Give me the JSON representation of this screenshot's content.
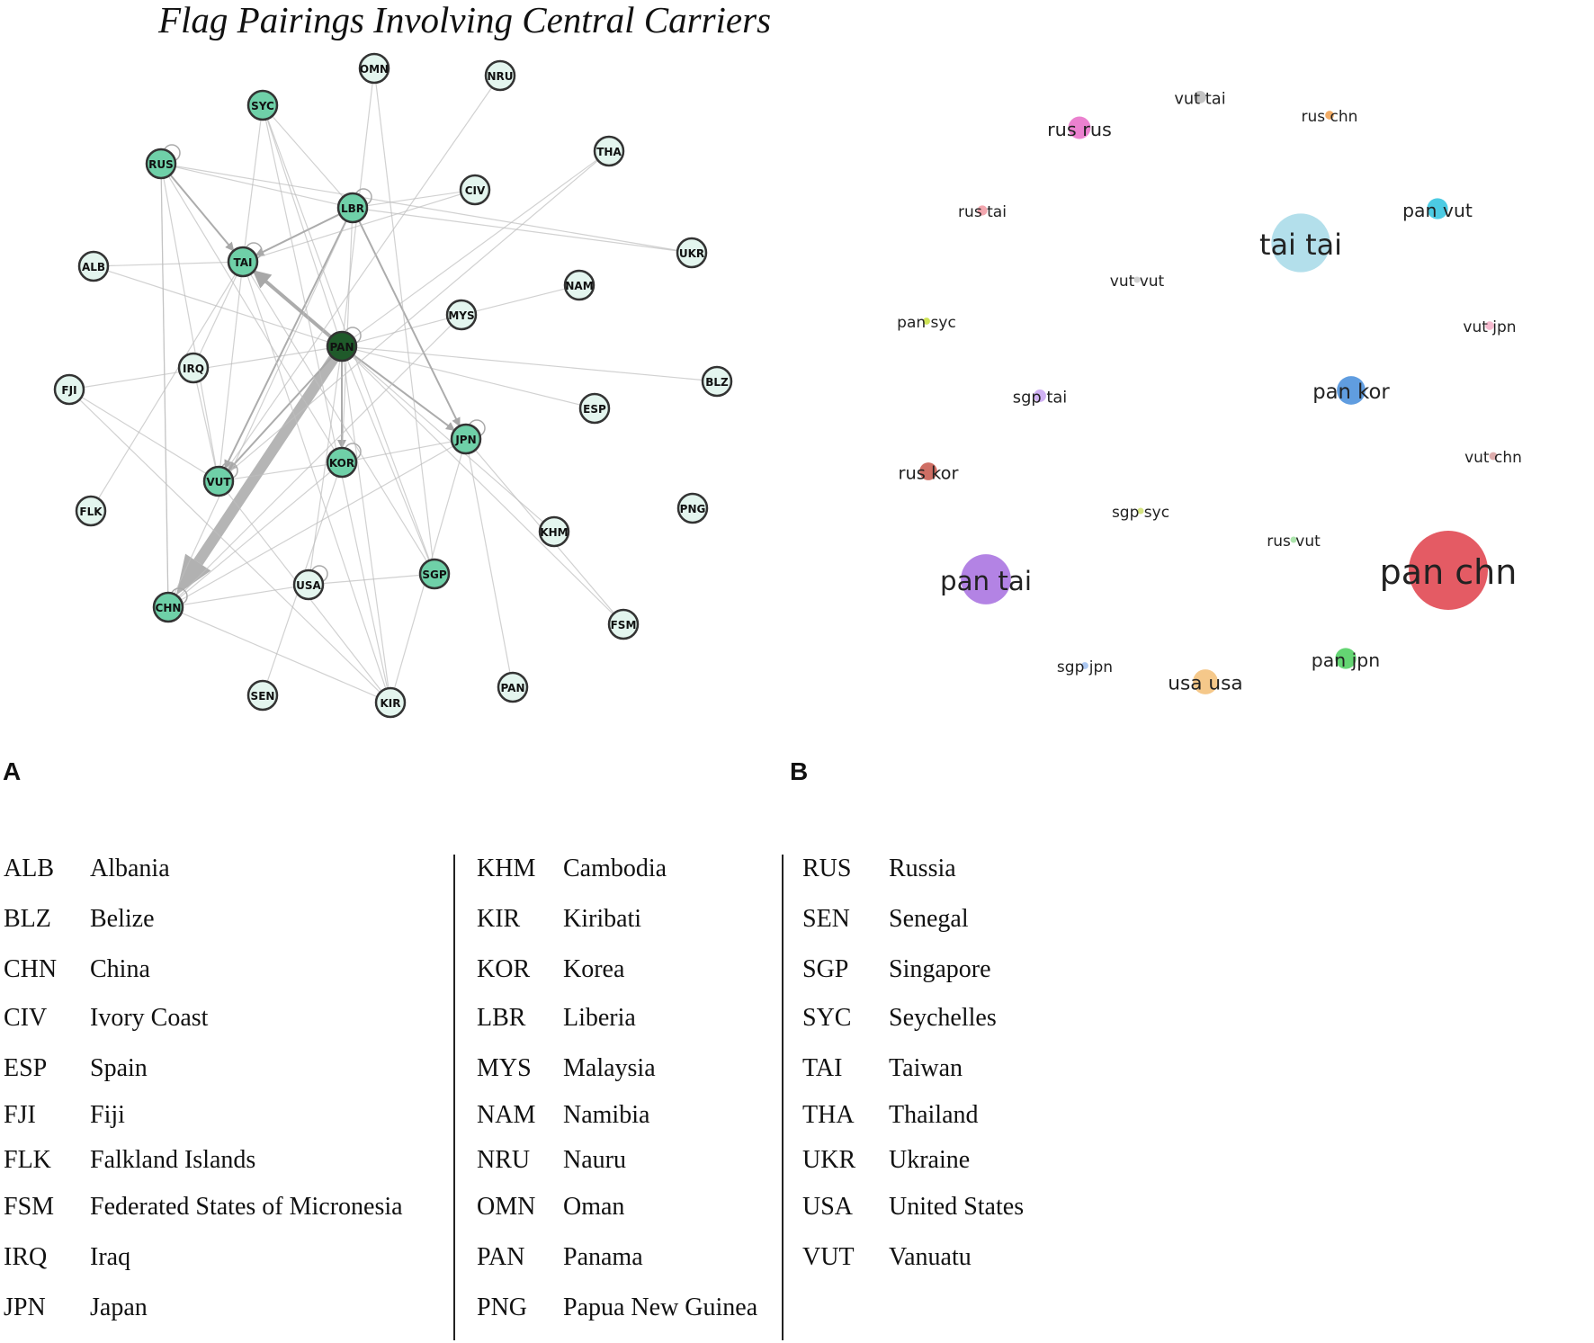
{
  "figure": {
    "title": "Flag Pairings Involving Central Carriers",
    "panel_a_label": "A",
    "panel_b_label": "B"
  },
  "network": {
    "nodes": [
      {
        "id": "OMN",
        "label": "OMN",
        "style": "light"
      },
      {
        "id": "NRU",
        "label": "NRU",
        "style": "light"
      },
      {
        "id": "SYC",
        "label": "SYC",
        "style": "medium"
      },
      {
        "id": "RUS",
        "label": "RUS",
        "style": "medium"
      },
      {
        "id": "THA",
        "label": "THA",
        "style": "light"
      },
      {
        "id": "CIV",
        "label": "CIV",
        "style": "light"
      },
      {
        "id": "LBR",
        "label": "LBR",
        "style": "medium"
      },
      {
        "id": "ALB",
        "label": "ALB",
        "style": "light"
      },
      {
        "id": "TAI",
        "label": "TAI",
        "style": "medium"
      },
      {
        "id": "UKR",
        "label": "UKR",
        "style": "light"
      },
      {
        "id": "NAM",
        "label": "NAM",
        "style": "light"
      },
      {
        "id": "MYS",
        "label": "MYS",
        "style": "light"
      },
      {
        "id": "PAN",
        "label": "PAN",
        "style": "dark"
      },
      {
        "id": "IRQ",
        "label": "IRQ",
        "style": "light"
      },
      {
        "id": "FJI",
        "label": "FJI",
        "style": "light"
      },
      {
        "id": "BLZ",
        "label": "BLZ",
        "style": "light"
      },
      {
        "id": "ESP",
        "label": "ESP",
        "style": "light"
      },
      {
        "id": "JPN",
        "label": "JPN",
        "style": "medium"
      },
      {
        "id": "KOR",
        "label": "KOR",
        "style": "medium"
      },
      {
        "id": "VUT",
        "label": "VUT",
        "style": "medium"
      },
      {
        "id": "FLK",
        "label": "FLK",
        "style": "light"
      },
      {
        "id": "PNG",
        "label": "PNG",
        "style": "light"
      },
      {
        "id": "KHM",
        "label": "KHM",
        "style": "light"
      },
      {
        "id": "SGP",
        "label": "SGP",
        "style": "medium"
      },
      {
        "id": "USA",
        "label": "USA",
        "style": "light"
      },
      {
        "id": "CHN",
        "label": "CHN",
        "style": "medium"
      },
      {
        "id": "FSM",
        "label": "FSM",
        "style": "light"
      },
      {
        "id": "SEN",
        "label": "SEN",
        "style": "light"
      },
      {
        "id": "KIR",
        "label": "KIR",
        "style": "light"
      },
      {
        "id": "PAN2",
        "label": "PAN",
        "style": "light"
      }
    ],
    "edges": [
      {
        "from": "PAN",
        "to": "CHN",
        "weight": 10
      },
      {
        "from": "PAN",
        "to": "TAI",
        "weight": 4
      },
      {
        "from": "PAN",
        "to": "KOR",
        "weight": 2
      },
      {
        "from": "PAN",
        "to": "JPN",
        "weight": 2
      },
      {
        "from": "PAN",
        "to": "VUT",
        "weight": 2
      },
      {
        "from": "PAN",
        "to": "SYC",
        "weight": 1
      },
      {
        "from": "PAN",
        "to": "MYS",
        "weight": 1
      },
      {
        "from": "PAN",
        "to": "ESP",
        "weight": 1
      },
      {
        "from": "PAN",
        "to": "BLZ",
        "weight": 1
      },
      {
        "from": "PAN",
        "to": "SGP",
        "weight": 1
      },
      {
        "from": "PAN",
        "to": "KHM",
        "weight": 1
      },
      {
        "from": "PAN",
        "to": "FSM",
        "weight": 1
      },
      {
        "from": "PAN",
        "to": "FJI",
        "weight": 1
      },
      {
        "from": "PAN",
        "to": "KIR",
        "weight": 1
      },
      {
        "from": "PAN",
        "to": "USA",
        "weight": 1
      },
      {
        "from": "PAN",
        "to": "THA",
        "weight": 1
      },
      {
        "from": "PAN",
        "to": "ALB",
        "weight": 1
      },
      {
        "from": "PAN",
        "to": "OMN",
        "weight": 1
      },
      {
        "from": "LBR",
        "to": "JPN",
        "weight": 2
      },
      {
        "from": "LBR",
        "to": "VUT",
        "weight": 2
      },
      {
        "from": "LBR",
        "to": "TAI",
        "weight": 2
      },
      {
        "from": "LBR",
        "to": "KOR",
        "weight": 1
      },
      {
        "from": "LBR",
        "to": "RUS",
        "weight": 1
      },
      {
        "from": "LBR",
        "to": "UKR",
        "weight": 1
      },
      {
        "from": "LBR",
        "to": "CIV",
        "weight": 1
      },
      {
        "from": "LBR",
        "to": "CHN",
        "weight": 1
      },
      {
        "from": "RUS",
        "to": "TAI",
        "weight": 2
      },
      {
        "from": "RUS",
        "to": "KOR",
        "weight": 1
      },
      {
        "from": "RUS",
        "to": "VUT",
        "weight": 1
      },
      {
        "from": "RUS",
        "to": "CHN",
        "weight": 1
      },
      {
        "from": "RUS",
        "to": "UKR",
        "weight": 1
      },
      {
        "from": "TAI",
        "to": "VUT",
        "weight": 1
      },
      {
        "from": "TAI",
        "to": "SGP",
        "weight": 1
      },
      {
        "from": "TAI",
        "to": "IRQ",
        "weight": 1
      },
      {
        "from": "TAI",
        "to": "FLK",
        "weight": 1
      },
      {
        "from": "TAI",
        "to": "KIR",
        "weight": 1
      },
      {
        "from": "SYC",
        "to": "LBR",
        "weight": 1
      },
      {
        "from": "SYC",
        "to": "TAI",
        "weight": 1
      },
      {
        "from": "SYC",
        "to": "SGP",
        "weight": 1
      },
      {
        "from": "SYC",
        "to": "KIR",
        "weight": 1
      },
      {
        "from": "VUT",
        "to": "KOR",
        "weight": 1
      },
      {
        "from": "VUT",
        "to": "THA",
        "weight": 1
      },
      {
        "from": "VUT",
        "to": "FJI",
        "weight": 1
      },
      {
        "from": "VUT",
        "to": "KIR",
        "weight": 1
      },
      {
        "from": "KOR",
        "to": "JPN",
        "weight": 1
      },
      {
        "from": "KOR",
        "to": "CHN",
        "weight": 1
      },
      {
        "from": "KOR",
        "to": "SEN",
        "weight": 1
      },
      {
        "from": "JPN",
        "to": "CHN",
        "weight": 1
      },
      {
        "from": "JPN",
        "to": "PAN2",
        "weight": 1
      },
      {
        "from": "JPN",
        "to": "KIR",
        "weight": 1
      },
      {
        "from": "JPN",
        "to": "FSM",
        "weight": 1
      },
      {
        "from": "USA",
        "to": "SGP",
        "weight": 1
      },
      {
        "from": "USA",
        "to": "CHN",
        "weight": 1
      },
      {
        "from": "CHN",
        "to": "KIR",
        "weight": 1
      },
      {
        "from": "CHN",
        "to": "RUS",
        "weight": 1
      },
      {
        "from": "CHN",
        "to": "MYS",
        "weight": 1
      },
      {
        "from": "CIV",
        "to": "TAI",
        "weight": 1
      },
      {
        "from": "NRU",
        "to": "VUT",
        "weight": 1
      },
      {
        "from": "OMN",
        "to": "SGP",
        "weight": 1
      },
      {
        "from": "MYS",
        "to": "NAM",
        "weight": 1
      },
      {
        "from": "FJI",
        "to": "KIR",
        "weight": 1
      },
      {
        "from": "IRQ",
        "to": "VUT",
        "weight": 1
      },
      {
        "from": "ALB",
        "to": "TAI",
        "weight": 1
      }
    ]
  },
  "bubbles": [
    {
      "label": "pan chn",
      "value": 100,
      "color": "#e0444f"
    },
    {
      "label": "tai tai",
      "value": 55,
      "color": "#a9dbe8"
    },
    {
      "label": "pan tai",
      "value": 40,
      "color": "#a872e0"
    },
    {
      "label": "pan kor",
      "value": 13,
      "color": "#4a8fdc"
    },
    {
      "label": "usa usa",
      "value": 10,
      "color": "#f4c07a"
    },
    {
      "label": "rus rus",
      "value": 8,
      "color": "#e870c8"
    },
    {
      "label": "pan vut",
      "value": 7,
      "color": "#33c4df"
    },
    {
      "label": "pan jpn",
      "value": 7,
      "color": "#4fcf60"
    },
    {
      "label": "rus kor",
      "value": 5,
      "color": "#c85a4e"
    },
    {
      "label": "vut tai",
      "value": 2.5,
      "color": "#bbbbbb"
    },
    {
      "label": "sgp tai",
      "value": 2.5,
      "color": "#c9a6f2"
    },
    {
      "label": "rus tai",
      "value": 1.6,
      "color": "#f09aa3"
    },
    {
      "label": "rus chn",
      "value": 1.2,
      "color": "#f0a050"
    },
    {
      "label": "vut jpn",
      "value": 1.2,
      "color": "#f5b0c8"
    },
    {
      "label": "vut chn",
      "value": 1.0,
      "color": "#d8a0a0"
    },
    {
      "label": "pan syc",
      "value": 0.8,
      "color": "#c8e040"
    },
    {
      "label": "sgp jpn",
      "value": 0.8,
      "color": "#a0c0f0"
    },
    {
      "label": "sgp syc",
      "value": 0.5,
      "color": "#d0e070"
    },
    {
      "label": "rus vut",
      "value": 0.5,
      "color": "#a0e0a0"
    },
    {
      "label": "vut vut",
      "value": 0.4,
      "color": "#cccccc"
    }
  ],
  "legend": {
    "columns": [
      [
        {
          "code": "ALB",
          "name": "Albania"
        },
        {
          "code": "BLZ",
          "name": "Belize"
        },
        {
          "code": "CHN",
          "name": "China"
        },
        {
          "code": "CIV",
          "name": "Ivory Coast"
        },
        {
          "code": "ESP",
          "name": "Spain"
        },
        {
          "code": "FJI",
          "name": "Fiji"
        },
        {
          "code": "FLK",
          "name": "Falkland Islands"
        },
        {
          "code": "FSM",
          "name": "Federated States of Micronesia"
        },
        {
          "code": "IRQ",
          "name": "Iraq"
        },
        {
          "code": "JPN",
          "name": "Japan"
        }
      ],
      [
        {
          "code": "KHM",
          "name": "Cambodia"
        },
        {
          "code": "KIR",
          "name": "Kiribati"
        },
        {
          "code": "KOR",
          "name": "Korea"
        },
        {
          "code": "LBR",
          "name": "Liberia"
        },
        {
          "code": "MYS",
          "name": "Malaysia"
        },
        {
          "code": "NAM",
          "name": "Namibia"
        },
        {
          "code": "NRU",
          "name": "Nauru"
        },
        {
          "code": "OMN",
          "name": "Oman"
        },
        {
          "code": "PAN",
          "name": "Panama"
        },
        {
          "code": "PNG",
          "name": "Papua New Guinea"
        }
      ],
      [
        {
          "code": "RUS",
          "name": "Russia"
        },
        {
          "code": "SEN",
          "name": "Senegal"
        },
        {
          "code": "SGP",
          "name": "Singapore"
        },
        {
          "code": "SYC",
          "name": "Seychelles"
        },
        {
          "code": "TAI",
          "name": "Taiwan"
        },
        {
          "code": "THA",
          "name": "Thailand"
        },
        {
          "code": "UKR",
          "name": "Ukraine"
        },
        {
          "code": "USA",
          "name": "United States"
        },
        {
          "code": "VUT",
          "name": "Vanuatu"
        }
      ]
    ]
  },
  "colors": {
    "node_dark": "#1f5a2a",
    "node_medium": "#6fd0a8",
    "node_light": "#e3f5ee",
    "node_stroke": "#333333",
    "edge": "#bdbdbd",
    "edge_heavy": "#a8a8a8"
  }
}
